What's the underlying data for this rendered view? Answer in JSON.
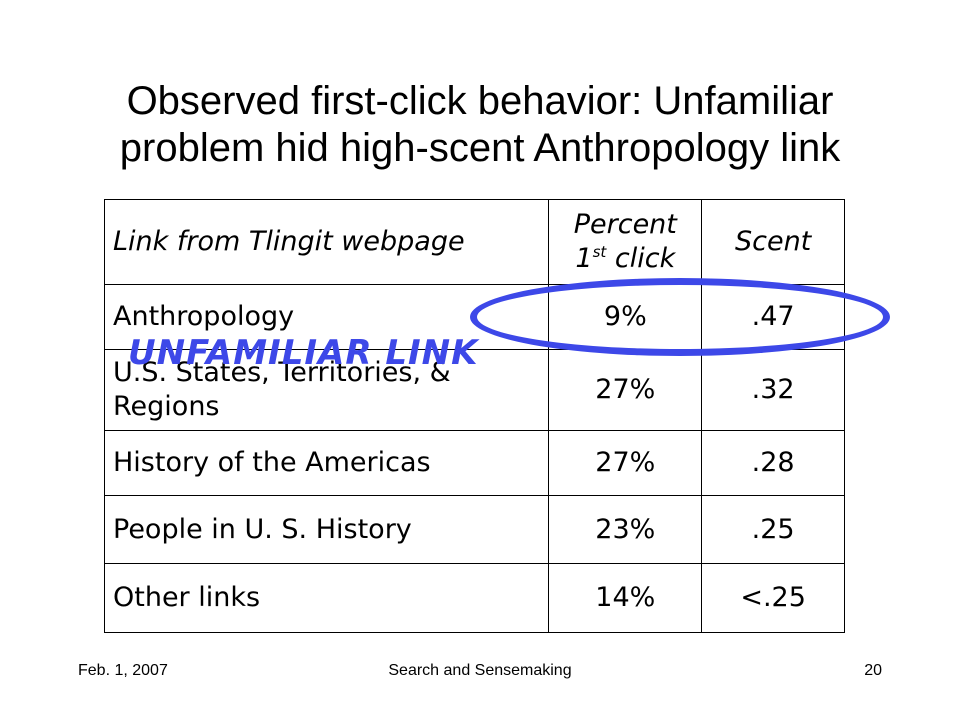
{
  "slide": {
    "title_line1": "Observed first-click behavior: Unfamiliar",
    "title_line2": "problem hid high-scent Anthropology link"
  },
  "table": {
    "header": {
      "link": "Link from Tlingit webpage",
      "percent_line1": "Percent",
      "percent_line2_num": "1",
      "percent_line2_sup": "st",
      "percent_line2_text": " click",
      "scent": "Scent"
    },
    "rows": [
      {
        "link": "Anthropology",
        "percent": "9%",
        "scent": ".47"
      },
      {
        "link_line1": "U.S. States, Territories, &",
        "link_line2": "Regions",
        "percent": "27%",
        "scent": ".32"
      },
      {
        "link": "History of the Americas",
        "percent": "27%",
        "scent": ".28"
      },
      {
        "link": "People in U. S. History",
        "percent": "23%",
        "scent": ".25"
      },
      {
        "link": "Other links",
        "percent": "14%",
        "scent": "<.25"
      }
    ]
  },
  "annotation": {
    "label": "UNFAMILIAR LINK",
    "color": "#3d48e8"
  },
  "footer": {
    "date": "Feb. 1, 2007",
    "center": "Search and Sensemaking",
    "page": "20"
  }
}
